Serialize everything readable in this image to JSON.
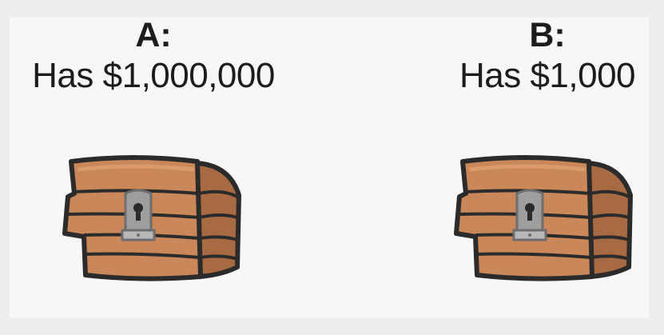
{
  "options": [
    {
      "label": "A:",
      "amount": "Has $1,000,000",
      "icon": "treasure-chest-icon"
    },
    {
      "label": "B:",
      "amount": "Has $1,000",
      "icon": "treasure-chest-icon"
    }
  ],
  "colors": {
    "background": "#eeeeee",
    "panel": "#f7f7f7",
    "wood": "#c9875a",
    "wood_side": "#a86a43",
    "outline": "#2b2b2b",
    "lock": "#9e9e9e"
  }
}
